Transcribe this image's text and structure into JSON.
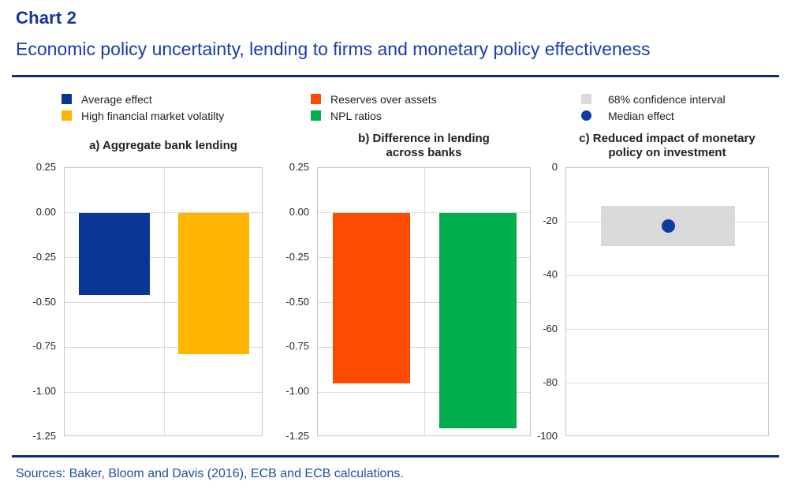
{
  "header": {
    "label": "Chart 2",
    "title": "Economic policy uncertainty, lending to firms and monetary policy effectiveness"
  },
  "footer": {
    "sources": "Sources: Baker, Bloom and Davis (2016), ECB and ECB calculations."
  },
  "colors": {
    "heading_blue": "#16339E",
    "subtitle_blue": "#1B3CAE",
    "rule_navy": "#0A2D87",
    "sources_blue": "#1D4FA6",
    "bar_blue": "#0A3596",
    "bar_yellow": "#FFB400",
    "bar_orange": "#FF4B00",
    "bar_green": "#00AE4D",
    "ci_gray": "#D9D9D9",
    "median_blue": "#0E3DA0"
  },
  "chart_data": [
    {
      "type": "bar",
      "title": "a) Aggregate bank lending",
      "title_lines": [
        "a) Aggregate bank lending"
      ],
      "legend": [
        {
          "label": "Average effect",
          "color": "#0A3596",
          "shape": "square"
        },
        {
          "label": "High financial market volatilty",
          "color": "#FFB400",
          "shape": "square"
        }
      ],
      "categories": [
        "Average effect",
        "High financial market volatilty"
      ],
      "values": [
        -0.46,
        -0.79
      ],
      "xlabel": "",
      "ylabel": "",
      "ylim": [
        0.25,
        -1.25
      ],
      "yticks": [
        "0.25",
        "0.00",
        "-0.25",
        "-0.50",
        "-0.75",
        "-1.00",
        "-1.25"
      ],
      "grid": true,
      "legend_position": "top"
    },
    {
      "type": "bar",
      "title": "b) Difference in lending across banks",
      "title_lines": [
        "b) Difference in lending",
        "across banks"
      ],
      "legend": [
        {
          "label": "Reserves over assets",
          "color": "#FF4B00",
          "shape": "square"
        },
        {
          "label": "NPL ratios",
          "color": "#00AE4D",
          "shape": "square"
        }
      ],
      "categories": [
        "Reserves over assets",
        "NPL ratios"
      ],
      "values": [
        -0.95,
        -1.2
      ],
      "xlabel": "",
      "ylabel": "",
      "ylim": [
        0.25,
        -1.25
      ],
      "yticks": [
        "0.25",
        "0.00",
        "-0.25",
        "-0.50",
        "-0.75",
        "-1.00",
        "-1.25"
      ],
      "grid": true,
      "legend_position": "top"
    },
    {
      "type": "interval",
      "title": "c) Reduced impact of monetary policy on investment",
      "title_lines": [
        "c) Reduced impact of monetary",
        "policy on investment"
      ],
      "legend": [
        {
          "label": "68% confidence interval",
          "color": "#D9D9D9",
          "shape": "square"
        },
        {
          "label": "Median effect",
          "color": "#0E3DA0",
          "shape": "circle"
        }
      ],
      "confidence_interval_68": [
        -14,
        -29
      ],
      "median_effect": -21.5,
      "xlabel": "",
      "ylabel": "",
      "ylim": [
        0,
        -100
      ],
      "yticks": [
        "0",
        "-20",
        "-40",
        "-60",
        "-80",
        "-100"
      ],
      "grid": true,
      "legend_position": "top"
    }
  ]
}
